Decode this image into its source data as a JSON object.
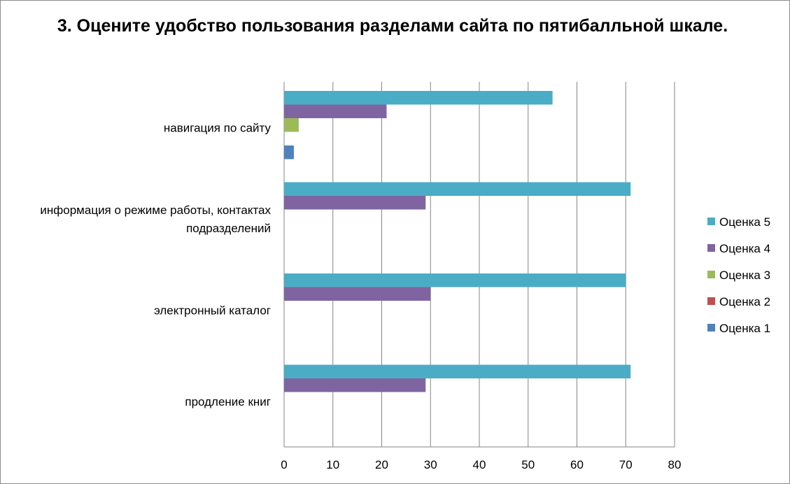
{
  "chart_data": {
    "type": "bar",
    "orientation": "horizontal",
    "title": "3. Оцените удобство пользования разделами сайта по пятибалльной шкале.",
    "categories": [
      [
        "навигация по сайту"
      ],
      [
        "информация о режиме работы, контактах",
        "подразделений"
      ],
      [
        "электронный каталог"
      ],
      [
        "продление книг"
      ]
    ],
    "series": [
      {
        "name": "Оценка 5",
        "color": "#4bacc6",
        "values": [
          55,
          71,
          70,
          71
        ]
      },
      {
        "name": "Оценка 4",
        "color": "#8064a2",
        "values": [
          21,
          29,
          30,
          29
        ]
      },
      {
        "name": "Оценка 3",
        "color": "#9bbb59",
        "values": [
          3,
          0,
          0,
          0
        ]
      },
      {
        "name": "Оценка 2",
        "color": "#c0504d",
        "values": [
          0,
          0,
          0,
          0
        ]
      },
      {
        "name": "Оценка 1",
        "color": "#4f81bd",
        "values": [
          2,
          0,
          0,
          0
        ]
      }
    ],
    "xlim": [
      0,
      80
    ],
    "xticks": [
      "0",
      "10",
      "20",
      "30",
      "40",
      "50",
      "60",
      "70",
      "80"
    ],
    "grid": "vertical",
    "legend_position": "right"
  }
}
